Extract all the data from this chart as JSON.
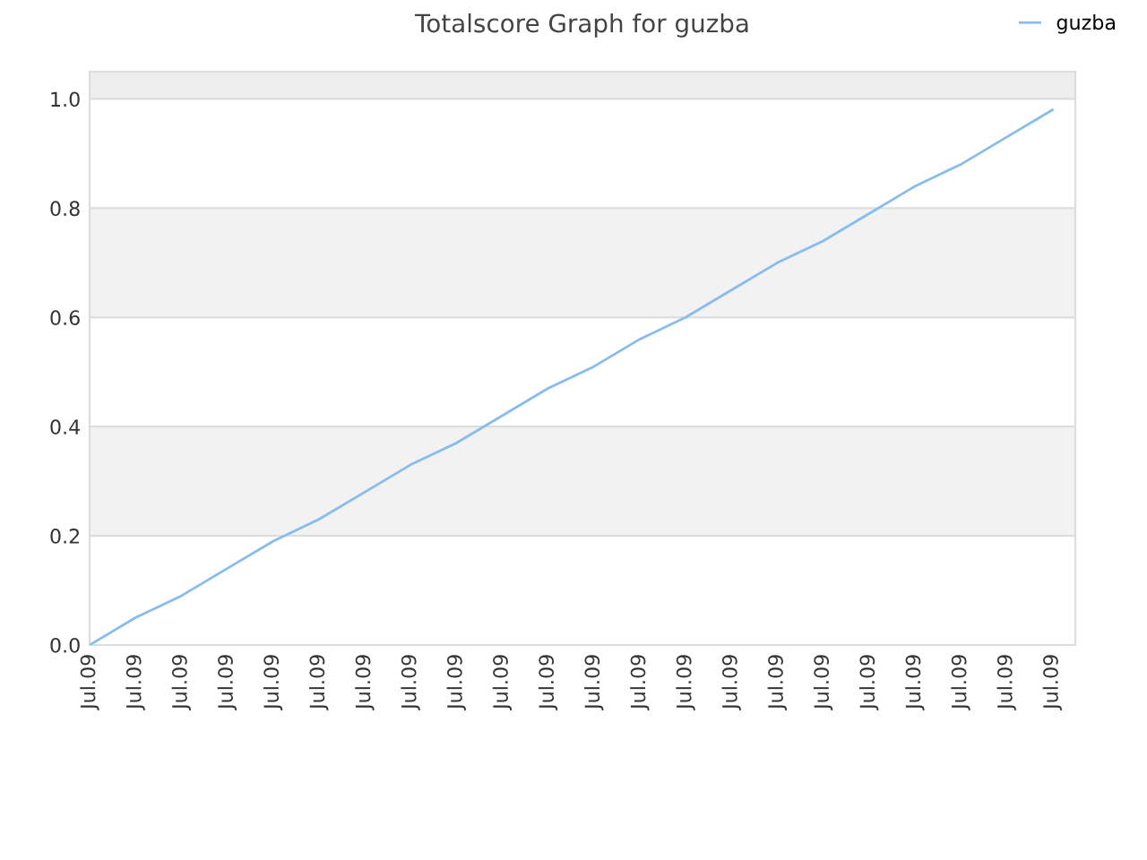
{
  "chart_data": {
    "type": "line",
    "title": "Totalscore Graph for guzba",
    "categories": [
      "Jul.09",
      "Jul.09",
      "Jul.09",
      "Jul.09",
      "Jul.09",
      "Jul.09",
      "Jul.09",
      "Jul.09",
      "Jul.09",
      "Jul.09",
      "Jul.09",
      "Jul.09",
      "Jul.09",
      "Jul.09",
      "Jul.09",
      "Jul.09",
      "Jul.09",
      "Jul.09",
      "Jul.09",
      "Jul.09",
      "Jul.09",
      "Jul.09"
    ],
    "series": [
      {
        "name": "guzba",
        "color": "#88bbee",
        "values": [
          0,
          0.05,
          0.09,
          0.14,
          0.19,
          0.23,
          0.28,
          0.33,
          0.37,
          0.42,
          0.47,
          0.51,
          0.56,
          0.6,
          0.65,
          0.7,
          0.74,
          0.79,
          0.84,
          0.88,
          0.93,
          0.98
        ]
      }
    ],
    "ylim": [
      0,
      1.05
    ],
    "yticks": [
      {
        "value": 0,
        "label": "0.0"
      },
      {
        "value": 0.2,
        "label": "0.2"
      },
      {
        "value": 0.4,
        "label": "0.4"
      },
      {
        "value": 0.6,
        "label": "0.6"
      },
      {
        "value": 0.8,
        "label": "0.8"
      },
      {
        "value": 1,
        "label": "1.0"
      }
    ],
    "bands": [
      {
        "axis": "y",
        "from": 0.2,
        "to": 0.4,
        "color": "#f2f2f2"
      },
      {
        "axis": "y",
        "from": 0.6,
        "to": 0.8,
        "color": "#f2f2f2"
      },
      {
        "axis": "y",
        "from": 1.0,
        "to": 1.05,
        "color": "#eeeeee"
      }
    ],
    "grid": "y",
    "legend": "top right",
    "marker": "none",
    "line_style": "solid"
  }
}
